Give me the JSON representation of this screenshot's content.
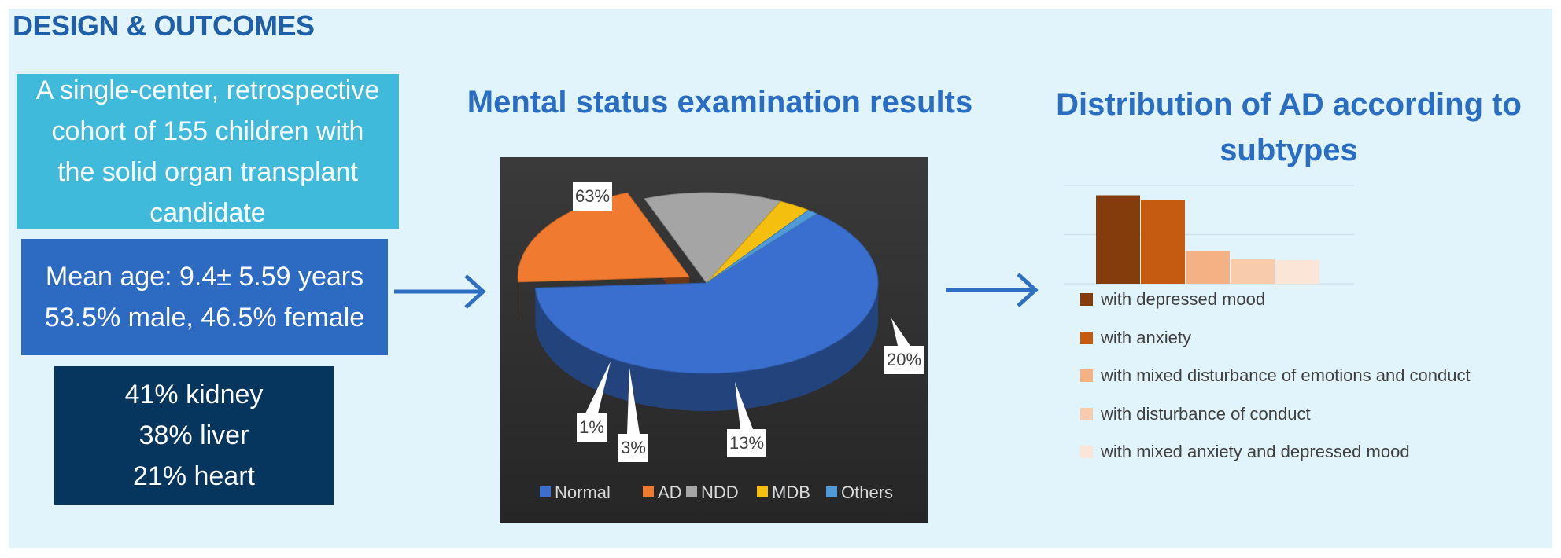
{
  "header": {
    "title": "DESIGN & OUTCOMES"
  },
  "boxes": {
    "cohort": [
      "A single-center, retrospective",
      "cohort of 155 children with",
      "the solid organ transplant",
      "candidate"
    ],
    "demographics": [
      "Mean age: 9.4± 5.59 years",
      "53.5% male, 46.5% female"
    ],
    "organs": [
      "41% kidney",
      "38% liver",
      "21% heart"
    ]
  },
  "colors": {
    "panel": "#e1f3fb",
    "title": "#2a6ec4",
    "arrow": "#2f6fc2"
  },
  "chart_data": [
    {
      "type": "pie",
      "title": "Mental status examination results",
      "categories": [
        "Normal",
        "AD",
        "NDD",
        "MDB",
        "Others"
      ],
      "values": [
        63,
        20,
        13,
        3,
        1
      ],
      "data_labels": [
        "63%",
        "20%",
        "13%",
        "3%",
        "1%"
      ],
      "colors": [
        "#3a6fcf",
        "#ef7a30",
        "#a5a5a5",
        "#f5bf10",
        "#4f9ad8"
      ],
      "exploded": [
        "AD"
      ],
      "legend": "bottom",
      "style": "3d"
    },
    {
      "type": "bar",
      "title": "Distribution of AD according to subtypes",
      "categories": [
        "with depressed mood",
        "with anxiety",
        "with mixed disturbance of emotions and conduct",
        "with disturbance of conduct",
        "with mixed anxiety and depressed mood"
      ],
      "values": [
        9,
        8.5,
        3.3,
        2.5,
        2.4
      ],
      "colors": [
        "#843c0c",
        "#c55a11",
        "#f4b183",
        "#f8cbad",
        "#fbe5d6"
      ],
      "legend": "bottom",
      "grid": true
    }
  ]
}
